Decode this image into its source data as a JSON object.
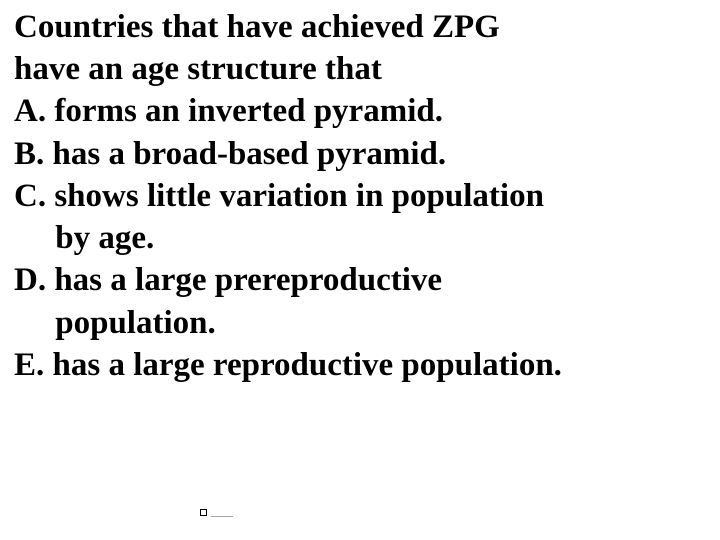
{
  "question": {
    "line1": "Countries that have achieved ZPG",
    "line2": "have an age structure that"
  },
  "options": {
    "a": "A. forms an inverted pyramid.",
    "b": "B. has a broad-based pyramid.",
    "c_line1": "C. shows little variation in population",
    "c_line2": "     by age.",
    "d_line1": "D. has a large prereproductive",
    "d_line2": "     population.",
    "e": "E. has a large reproductive population."
  },
  "footer": "______"
}
